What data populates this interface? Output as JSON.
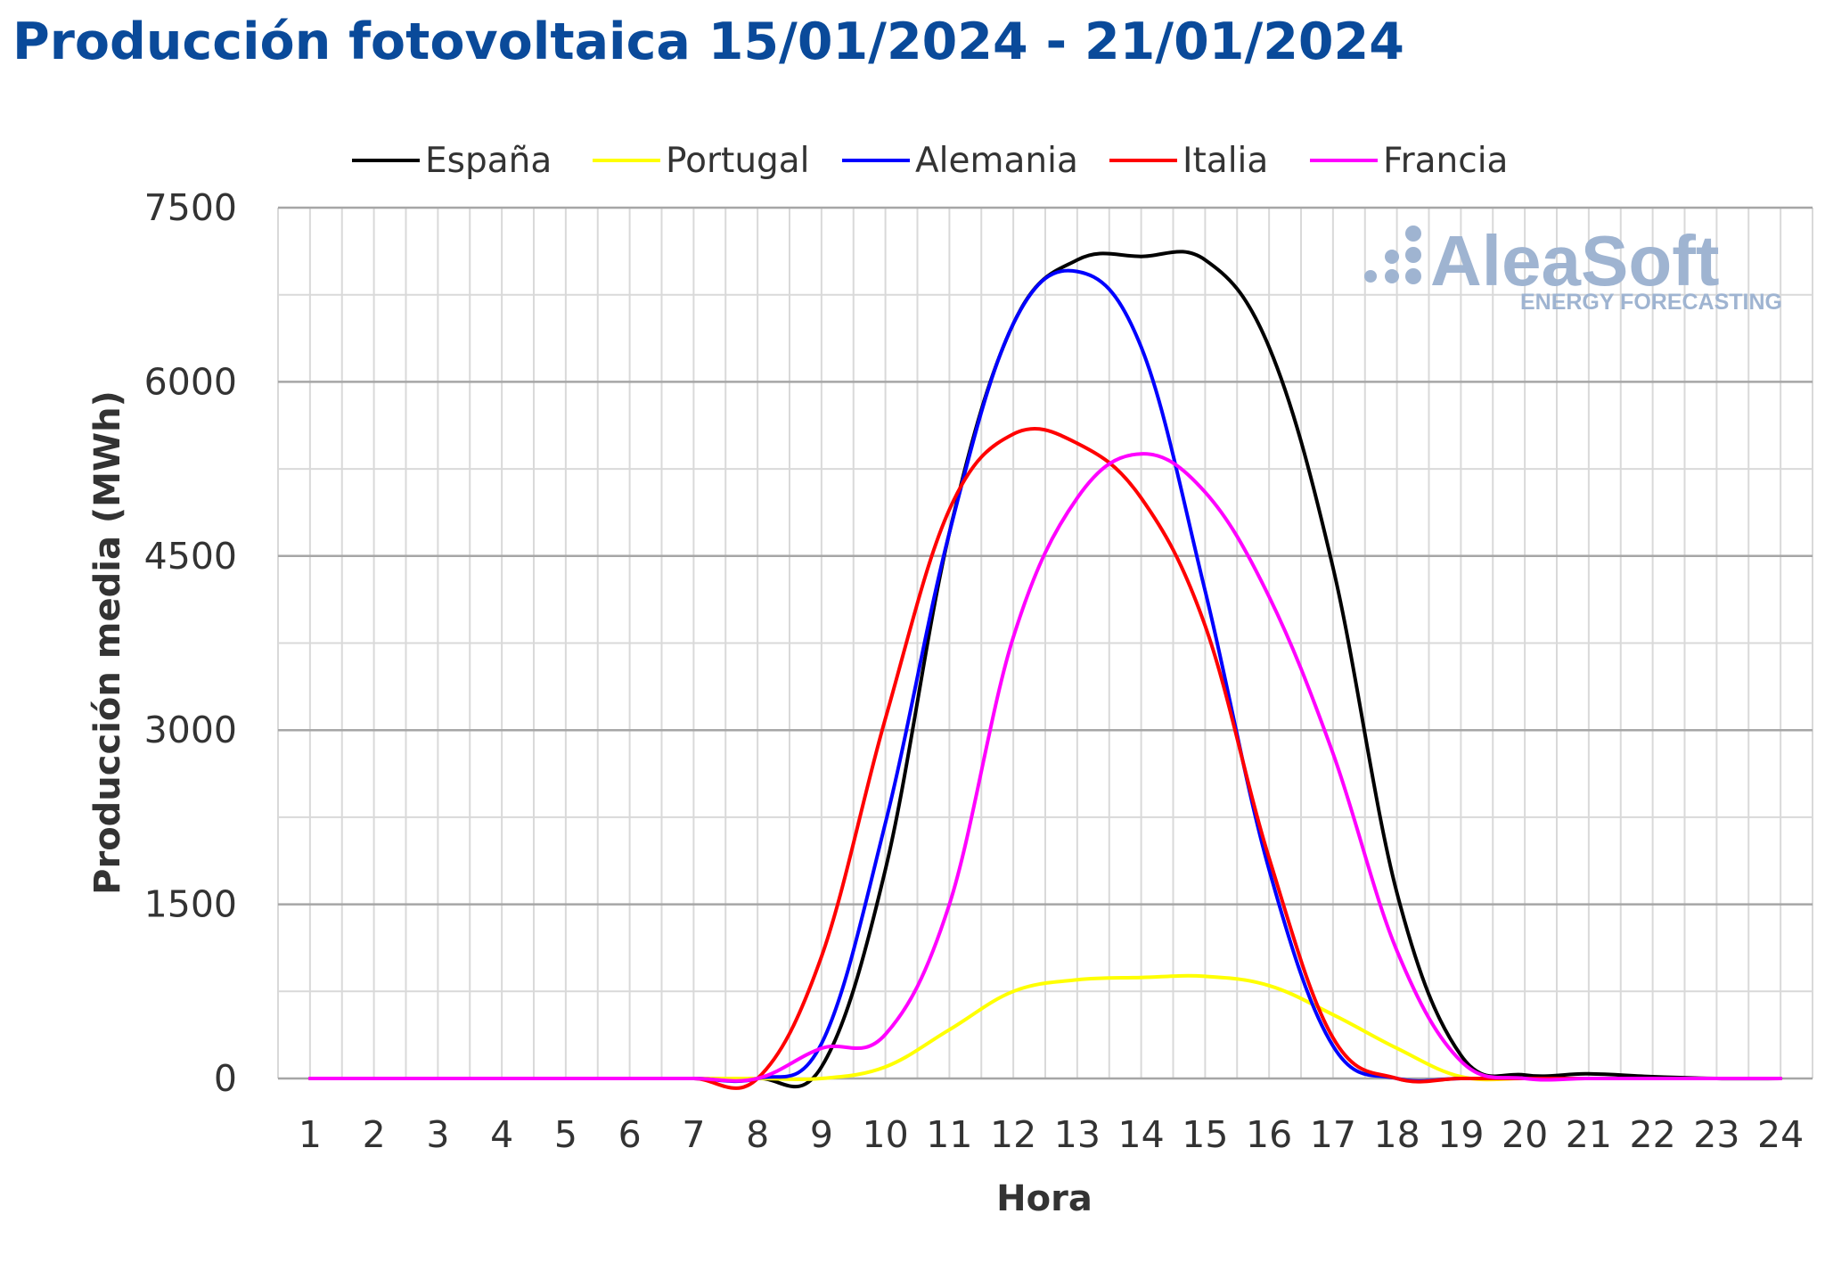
{
  "watermark": {
    "main": "AleaSoft",
    "sub": "ENERGY FORECASTING"
  },
  "chart_data": {
    "type": "line",
    "title": "Producción fotovoltaica 15/01/2024 - 21/01/2024",
    "xlabel": "Hora",
    "ylabel": "Producción media (MWh)",
    "x": [
      1,
      2,
      3,
      4,
      5,
      6,
      7,
      8,
      9,
      10,
      11,
      12,
      13,
      14,
      15,
      16,
      17,
      18,
      19,
      20,
      21,
      22,
      23,
      24
    ],
    "ylim": [
      0,
      7500
    ],
    "yticks": [
      0,
      1500,
      3000,
      4500,
      6000,
      7500
    ],
    "grid": true,
    "legend_position": "top",
    "series": [
      {
        "name": "España",
        "color": "#000000",
        "values": [
          0,
          0,
          0,
          0,
          0,
          0,
          0,
          0,
          100,
          1800,
          4700,
          6500,
          7050,
          7080,
          7050,
          6300,
          4400,
          1600,
          200,
          30,
          40,
          15,
          0,
          0
        ]
      },
      {
        "name": "Portugal",
        "color": "#ffff00",
        "values": [
          0,
          0,
          0,
          0,
          0,
          0,
          0,
          0,
          0,
          100,
          420,
          750,
          850,
          870,
          880,
          800,
          550,
          260,
          15,
          0,
          0,
          0,
          0,
          0
        ]
      },
      {
        "name": "Alemania",
        "color": "#0000ff",
        "values": [
          0,
          0,
          0,
          0,
          0,
          0,
          0,
          0,
          300,
          2200,
          4700,
          6500,
          6950,
          6300,
          4200,
          1800,
          280,
          0,
          0,
          0,
          0,
          0,
          0,
          0
        ]
      },
      {
        "name": "Italia",
        "color": "#ff0000",
        "values": [
          0,
          0,
          0,
          0,
          0,
          0,
          0,
          0,
          1050,
          3100,
          4900,
          5550,
          5470,
          5000,
          3900,
          1900,
          350,
          0,
          0,
          0,
          0,
          0,
          0,
          0
        ]
      },
      {
        "name": "Francia",
        "color": "#ff00ff",
        "values": [
          0,
          0,
          0,
          0,
          0,
          0,
          0,
          0,
          260,
          380,
          1500,
          3800,
          5000,
          5380,
          5050,
          4150,
          2800,
          1100,
          150,
          0,
          0,
          0,
          0,
          0
        ]
      }
    ]
  }
}
